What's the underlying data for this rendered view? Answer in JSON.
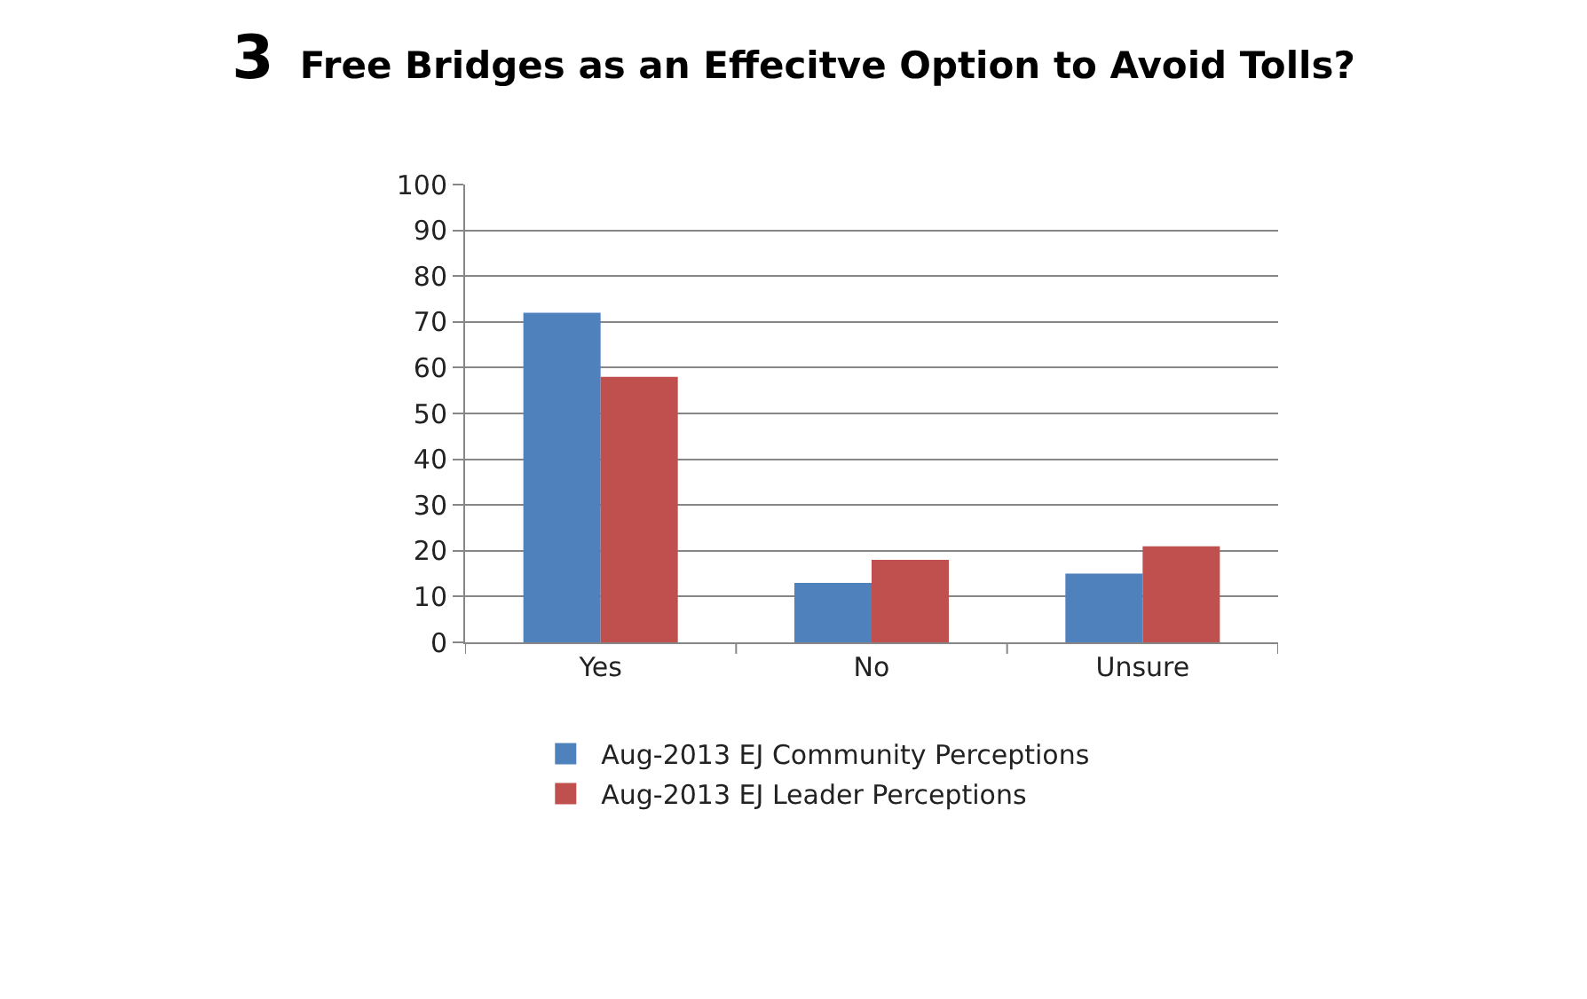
{
  "chart_data": {
    "type": "bar",
    "title": "3 Free Bridges as an Effecitve Option to Avoid Tolls?",
    "categories": [
      "Yes",
      "No",
      "Unsure"
    ],
    "series": [
      {
        "name": "Aug-2013 EJ Community Perceptions",
        "color": "#4f81bd",
        "values": [
          72,
          13,
          15
        ]
      },
      {
        "name": "Aug-2013 EJ Leader Perceptions",
        "color": "#c0504d",
        "values": [
          58,
          18,
          21
        ]
      }
    ],
    "ylim": [
      0,
      100
    ],
    "yticks": [
      0,
      10,
      20,
      30,
      40,
      50,
      60,
      70,
      80,
      90,
      100
    ],
    "grid": "y",
    "legend": "bottom"
  }
}
